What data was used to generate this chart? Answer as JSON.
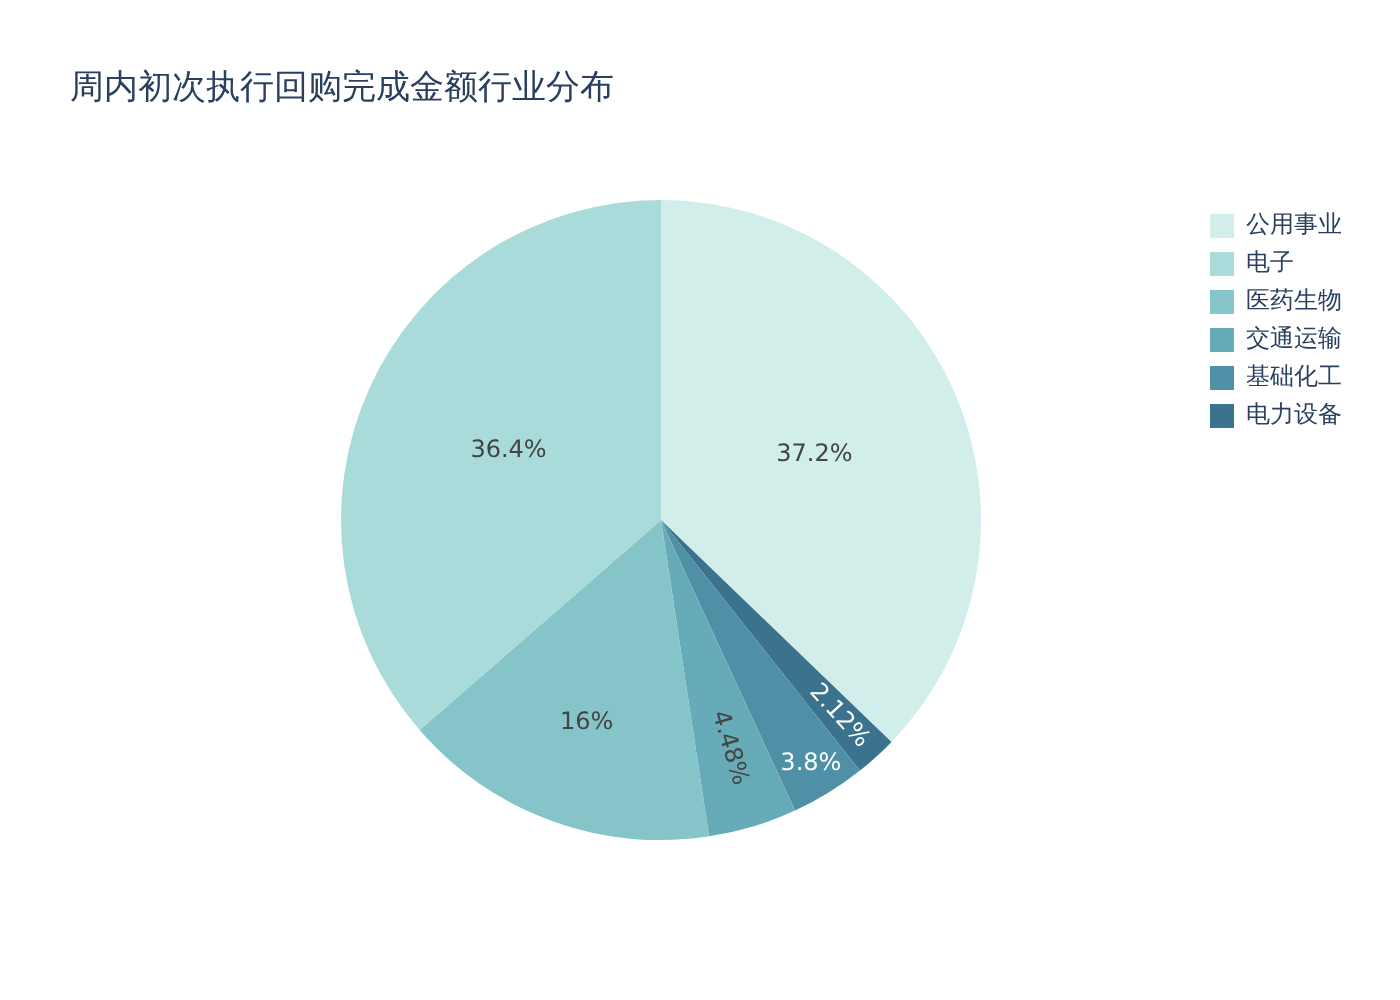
{
  "chart_data": {
    "type": "pie",
    "title": "周内初次执行回购完成金额行业分布",
    "categories": [
      "公用事业",
      "电子",
      "医药生物",
      "交通运输",
      "基础化工",
      "电力设备"
    ],
    "values": [
      37.2,
      36.4,
      16,
      4.48,
      3.8,
      2.12
    ],
    "colors": [
      "#d1eeea",
      "#a8dbd9",
      "#85c4c9",
      "#68abb8",
      "#4f90a6",
      "#3b738f"
    ],
    "value_labels": [
      "37.2%",
      "36.4%",
      "16%",
      "4.48%",
      "3.8%",
      "2.12%"
    ],
    "legend": "top right"
  }
}
